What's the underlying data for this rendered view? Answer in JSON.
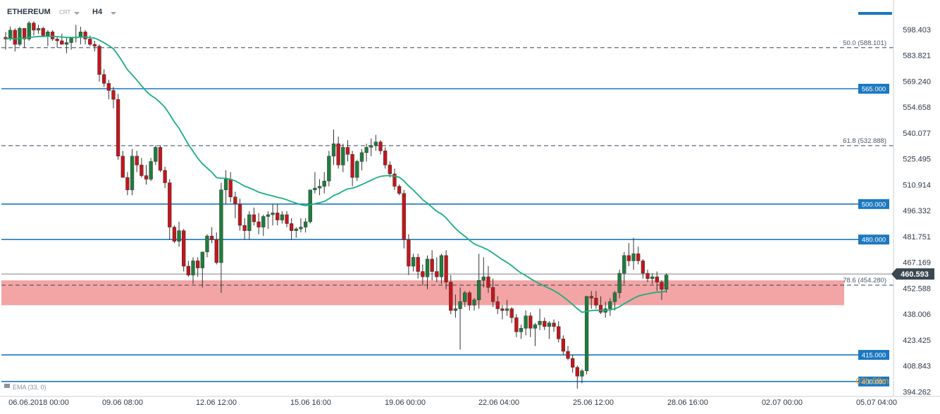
{
  "header": {
    "symbol": "ETHEREUM",
    "type_badge": "CRT",
    "timeframe": "H4"
  },
  "icons": [
    "chevron-down-icon",
    "menu-bar-icon"
  ],
  "colors": {
    "bull": "#1e7d3c",
    "bear": "#c4161c",
    "ema": "#1aae7f",
    "level_line": "#1c78c0",
    "level_label_bg": "#1c78c0",
    "zone_fill": "#f08a8a",
    "price_tag_bg": "#3a4650",
    "timer": "#f0a020"
  },
  "indicator_label": "EMA (33, 0)",
  "timer": "03h 58m",
  "chart_data": {
    "type": "candlestick",
    "instrument": "ETHEREUM",
    "timeframe": "H4",
    "ylim": [
      392,
      612
    ],
    "y_ticks": [
      "598.403",
      "583.821",
      "569.240",
      "554.658",
      "540.077",
      "525.495",
      "510.914",
      "496.332",
      "481.751",
      "467.169",
      "452.588",
      "438.006",
      "423.425",
      "408.843",
      "394.262"
    ],
    "x_ticks": [
      "06.06.2018 00:00",
      "09.06 08:00",
      "12.06 12:00",
      "15.06 16:00",
      "19.06 00:00",
      "22.06 04:00",
      "25.06 12:00",
      "28.06 16:00",
      "02.07 00:00",
      "05.07 04:00"
    ],
    "current_price": 460.593,
    "horizontal_levels": [
      {
        "label": "565.000",
        "value": 565.0,
        "style": "solid"
      },
      {
        "label": "500.000",
        "value": 500.0,
        "style": "solid"
      },
      {
        "label": "480.000",
        "value": 480.0,
        "style": "solid"
      },
      {
        "label": "415.000",
        "value": 415.0,
        "style": "solid"
      },
      {
        "label": "400.000",
        "value": 400.0,
        "style": "solid"
      }
    ],
    "fib_levels": [
      {
        "label": "50.0 (588.101)",
        "value": 588.101
      },
      {
        "label": "61.8 (532.888)",
        "value": 532.888
      },
      {
        "label": "78.6 (454.280)",
        "value": 454.28
      }
    ],
    "zone": {
      "from": 443,
      "to": 457
    },
    "candles": [
      [
        594,
        597,
        587,
        593
      ],
      [
        593,
        600,
        592,
        598
      ],
      [
        598,
        599,
        586,
        590
      ],
      [
        590,
        600,
        589,
        599
      ],
      [
        599,
        599,
        588,
        593
      ],
      [
        593,
        603,
        592,
        602
      ],
      [
        602,
        603,
        595,
        598
      ],
      [
        598,
        601,
        596,
        599
      ],
      [
        599,
        600,
        594,
        595
      ],
      [
        595,
        598,
        589,
        597
      ],
      [
        597,
        598,
        592,
        593
      ],
      [
        593,
        594,
        588,
        592
      ],
      [
        592,
        596,
        590,
        590
      ],
      [
        590,
        594,
        585,
        591
      ],
      [
        591,
        594,
        587,
        594
      ],
      [
        594,
        601,
        591,
        594
      ],
      [
        594,
        600,
        590,
        597
      ],
      [
        597,
        598,
        590,
        593
      ],
      [
        593,
        595,
        589,
        590
      ],
      [
        590,
        592,
        586,
        589
      ],
      [
        589,
        590,
        569,
        573
      ],
      [
        573,
        576,
        566,
        568
      ],
      [
        568,
        570,
        559,
        564
      ],
      [
        564,
        566,
        554,
        559
      ],
      [
        559,
        562,
        525,
        527
      ],
      [
        527,
        530,
        515,
        515
      ],
      [
        515,
        518,
        505,
        508
      ],
      [
        508,
        531,
        505,
        527
      ],
      [
        527,
        530,
        518,
        522
      ],
      [
        522,
        526,
        515,
        516
      ],
      [
        516,
        522,
        511,
        514
      ],
      [
        514,
        526,
        513,
        524
      ],
      [
        524,
        533,
        522,
        532
      ],
      [
        532,
        533,
        518,
        519
      ],
      [
        519,
        521,
        509,
        512
      ],
      [
        512,
        514,
        480,
        487
      ],
      [
        487,
        488,
        478,
        479
      ],
      [
        479,
        490,
        476,
        485
      ],
      [
        485,
        486,
        462,
        465
      ],
      [
        465,
        468,
        459,
        460
      ],
      [
        460,
        470,
        455,
        468
      ],
      [
        468,
        470,
        459,
        464
      ],
      [
        464,
        472,
        453,
        473
      ],
      [
        473,
        483,
        470,
        482
      ],
      [
        482,
        487,
        478,
        480
      ],
      [
        480,
        484,
        466,
        467
      ],
      [
        467,
        512,
        450,
        508
      ],
      [
        508,
        519,
        500,
        514
      ],
      [
        514,
        518,
        501,
        504
      ],
      [
        504,
        507,
        492,
        500
      ],
      [
        500,
        503,
        485,
        488
      ],
      [
        488,
        492,
        480,
        485
      ],
      [
        485,
        496,
        480,
        494
      ],
      [
        494,
        498,
        488,
        490
      ],
      [
        490,
        495,
        483,
        487
      ],
      [
        487,
        494,
        482,
        493
      ],
      [
        493,
        496,
        486,
        494
      ],
      [
        494,
        500,
        488,
        495
      ],
      [
        495,
        500,
        488,
        491
      ],
      [
        491,
        496,
        489,
        494
      ],
      [
        494,
        496,
        487,
        489
      ],
      [
        489,
        492,
        480,
        485
      ],
      [
        485,
        487,
        481,
        486
      ],
      [
        486,
        492,
        484,
        487
      ],
      [
        487,
        492,
        484,
        490
      ],
      [
        490,
        508,
        489,
        508
      ],
      [
        508,
        518,
        506,
        509
      ],
      [
        509,
        514,
        505,
        510
      ],
      [
        510,
        518,
        506,
        513
      ],
      [
        513,
        530,
        510,
        527
      ],
      [
        527,
        542,
        522,
        534
      ],
      [
        534,
        538,
        520,
        522
      ],
      [
        522,
        534,
        518,
        532
      ],
      [
        532,
        536,
        524,
        528
      ],
      [
        528,
        530,
        510,
        515
      ],
      [
        515,
        525,
        513,
        524
      ],
      [
        524,
        531,
        519,
        529
      ],
      [
        529,
        534,
        524,
        532
      ],
      [
        532,
        537,
        527,
        533
      ],
      [
        533,
        539,
        530,
        535
      ],
      [
        535,
        536,
        528,
        530
      ],
      [
        530,
        532,
        520,
        522
      ],
      [
        522,
        524,
        515,
        517
      ],
      [
        517,
        520,
        508,
        510
      ],
      [
        510,
        511,
        505,
        506
      ],
      [
        506,
        508,
        475,
        480
      ],
      [
        480,
        483,
        460,
        465
      ],
      [
        465,
        472,
        462,
        470
      ],
      [
        470,
        472,
        458,
        462
      ],
      [
        462,
        466,
        454,
        459
      ],
      [
        459,
        471,
        452,
        469
      ],
      [
        469,
        474,
        457,
        462
      ],
      [
        462,
        470,
        456,
        459
      ],
      [
        459,
        472,
        455,
        471
      ],
      [
        471,
        474,
        452,
        456
      ],
      [
        456,
        460,
        438,
        440
      ],
      [
        440,
        449,
        436,
        441
      ],
      [
        441,
        453,
        418,
        445
      ],
      [
        445,
        451,
        442,
        450
      ],
      [
        450,
        451,
        440,
        443
      ],
      [
        443,
        447,
        440,
        446
      ],
      [
        446,
        472,
        441,
        457
      ],
      [
        457,
        470,
        453,
        459
      ],
      [
        459,
        465,
        450,
        453
      ],
      [
        453,
        458,
        442,
        445
      ],
      [
        445,
        448,
        438,
        441
      ],
      [
        441,
        443,
        435,
        440
      ],
      [
        440,
        446,
        437,
        441
      ],
      [
        441,
        442,
        433,
        436
      ],
      [
        436,
        438,
        425,
        428
      ],
      [
        428,
        432,
        424,
        430
      ],
      [
        430,
        440,
        426,
        437
      ],
      [
        437,
        439,
        425,
        430
      ],
      [
        430,
        433,
        420,
        432
      ],
      [
        432,
        441,
        429,
        434
      ],
      [
        434,
        436,
        429,
        431
      ],
      [
        431,
        434,
        424,
        433
      ],
      [
        433,
        435,
        428,
        431
      ],
      [
        431,
        434,
        422,
        424
      ],
      [
        424,
        426,
        415,
        417
      ],
      [
        417,
        420,
        412,
        413
      ],
      [
        413,
        415,
        405,
        408
      ],
      [
        408,
        409,
        396,
        403
      ],
      [
        403,
        407,
        399,
        406
      ],
      [
        406,
        448,
        404,
        448
      ],
      [
        448,
        451,
        441,
        447
      ],
      [
        447,
        451,
        441,
        443
      ],
      [
        443,
        448,
        438,
        439
      ],
      [
        439,
        445,
        436,
        441
      ],
      [
        441,
        447,
        437,
        445
      ],
      [
        445,
        451,
        440,
        450
      ],
      [
        450,
        463,
        447,
        461
      ],
      [
        461,
        473,
        455,
        471
      ],
      [
        471,
        478,
        465,
        468
      ],
      [
        468,
        481,
        463,
        472
      ],
      [
        472,
        476,
        466,
        468
      ],
      [
        468,
        469,
        458,
        461
      ],
      [
        461,
        463,
        456,
        458
      ],
      [
        458,
        461,
        455,
        459
      ],
      [
        459,
        462,
        451,
        456
      ],
      [
        456,
        457,
        446,
        452
      ],
      [
        452,
        461,
        450,
        460
      ]
    ],
    "ema_period": 33
  }
}
